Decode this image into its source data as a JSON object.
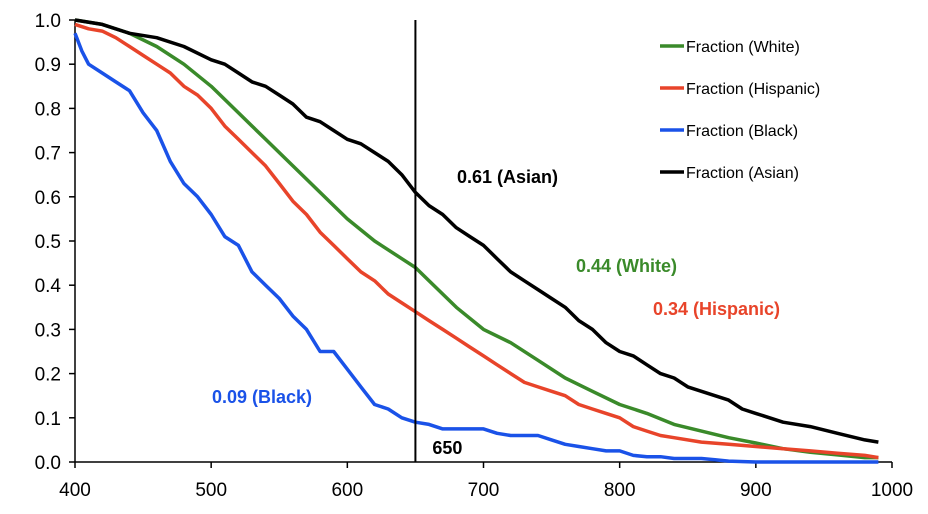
{
  "chart_data": {
    "type": "line",
    "xlim": [
      400,
      1000
    ],
    "ylim": [
      0,
      1
    ],
    "x_ticks": [
      "400",
      "500",
      "600",
      "700",
      "800",
      "900",
      "1000"
    ],
    "y_ticks": [
      "0.0",
      "0.1",
      "0.2",
      "0.3",
      "0.4",
      "0.5",
      "0.6",
      "0.7",
      "0.8",
      "0.9",
      "1.0"
    ],
    "grid": false,
    "legend_position": "top-right",
    "vertical_line": {
      "x": 650,
      "label": "650"
    },
    "series": [
      {
        "name": "Fraction (White)",
        "color": "#3a8a2a",
        "x": [
          400,
          420,
          440,
          460,
          480,
          500,
          520,
          540,
          560,
          580,
          600,
          620,
          640,
          650,
          660,
          680,
          700,
          720,
          740,
          760,
          780,
          800,
          820,
          840,
          860,
          880,
          900,
          920,
          940,
          960,
          980,
          990
        ],
        "y": [
          1.0,
          0.99,
          0.97,
          0.94,
          0.9,
          0.85,
          0.79,
          0.73,
          0.67,
          0.61,
          0.55,
          0.5,
          0.46,
          0.44,
          0.41,
          0.35,
          0.3,
          0.27,
          0.23,
          0.19,
          0.16,
          0.13,
          0.11,
          0.085,
          0.07,
          0.055,
          0.043,
          0.03,
          0.022,
          0.016,
          0.01,
          0.01
        ]
      },
      {
        "name": "Fraction (Hispanic)",
        "color": "#e8442a",
        "x": [
          400,
          410,
          420,
          430,
          440,
          450,
          460,
          470,
          480,
          490,
          500,
          510,
          520,
          530,
          540,
          550,
          560,
          570,
          580,
          590,
          600,
          610,
          620,
          630,
          640,
          650,
          660,
          670,
          680,
          690,
          700,
          710,
          720,
          730,
          740,
          750,
          760,
          770,
          780,
          790,
          800,
          810,
          820,
          830,
          840,
          860,
          880,
          900,
          920,
          940,
          960,
          980,
          990
        ],
        "y": [
          0.99,
          0.98,
          0.975,
          0.96,
          0.94,
          0.92,
          0.9,
          0.88,
          0.85,
          0.83,
          0.8,
          0.76,
          0.73,
          0.7,
          0.67,
          0.63,
          0.59,
          0.56,
          0.52,
          0.49,
          0.46,
          0.43,
          0.41,
          0.38,
          0.36,
          0.34,
          0.32,
          0.3,
          0.28,
          0.26,
          0.24,
          0.22,
          0.2,
          0.18,
          0.17,
          0.16,
          0.15,
          0.13,
          0.12,
          0.11,
          0.1,
          0.08,
          0.07,
          0.06,
          0.055,
          0.045,
          0.04,
          0.035,
          0.03,
          0.025,
          0.02,
          0.015,
          0.01
        ]
      },
      {
        "name": "Fraction (Black)",
        "color": "#1a52e8",
        "x": [
          400,
          405,
          410,
          420,
          430,
          440,
          450,
          460,
          470,
          480,
          490,
          500,
          510,
          520,
          530,
          540,
          550,
          560,
          570,
          580,
          590,
          600,
          610,
          620,
          630,
          640,
          650,
          660,
          670,
          680,
          690,
          700,
          710,
          720,
          740,
          750,
          760,
          770,
          780,
          790,
          800,
          810,
          820,
          830,
          840,
          860,
          870,
          880,
          900,
          950,
          990
        ],
        "y": [
          0.97,
          0.93,
          0.9,
          0.88,
          0.86,
          0.84,
          0.79,
          0.75,
          0.68,
          0.63,
          0.6,
          0.56,
          0.51,
          0.49,
          0.43,
          0.4,
          0.37,
          0.33,
          0.3,
          0.25,
          0.25,
          0.21,
          0.17,
          0.13,
          0.12,
          0.1,
          0.09,
          0.085,
          0.075,
          0.075,
          0.075,
          0.075,
          0.065,
          0.06,
          0.06,
          0.05,
          0.04,
          0.035,
          0.03,
          0.025,
          0.025,
          0.015,
          0.012,
          0.012,
          0.008,
          0.008,
          0.005,
          0.002,
          0.0,
          0.0,
          0.0
        ]
      },
      {
        "name": "Fraction (Asian)",
        "color": "#000000",
        "x": [
          400,
          420,
          440,
          460,
          480,
          500,
          510,
          520,
          530,
          540,
          550,
          560,
          570,
          580,
          590,
          600,
          610,
          620,
          630,
          640,
          650,
          660,
          670,
          680,
          690,
          700,
          710,
          720,
          730,
          740,
          750,
          760,
          770,
          780,
          790,
          800,
          810,
          820,
          830,
          840,
          850,
          860,
          870,
          880,
          890,
          900,
          920,
          940,
          960,
          980,
          990
        ],
        "y": [
          1.0,
          0.99,
          0.97,
          0.96,
          0.94,
          0.91,
          0.9,
          0.88,
          0.86,
          0.85,
          0.83,
          0.81,
          0.78,
          0.77,
          0.75,
          0.73,
          0.72,
          0.7,
          0.68,
          0.65,
          0.61,
          0.58,
          0.56,
          0.53,
          0.51,
          0.49,
          0.46,
          0.43,
          0.41,
          0.39,
          0.37,
          0.35,
          0.32,
          0.3,
          0.27,
          0.25,
          0.24,
          0.22,
          0.2,
          0.19,
          0.17,
          0.16,
          0.15,
          0.14,
          0.12,
          0.11,
          0.09,
          0.08,
          0.065,
          0.05,
          0.045
        ]
      }
    ],
    "annotations": [
      {
        "text": "0.61 (Asian)",
        "x": 650,
        "y": 0.61,
        "color": "#000000"
      },
      {
        "text": "0.44 (White)",
        "x": 650,
        "y": 0.44,
        "color": "#3a8a2a"
      },
      {
        "text": "0.34 (Hispanic)",
        "x": 650,
        "y": 0.34,
        "color": "#e8442a"
      },
      {
        "text": "0.09 (Black)",
        "x": 650,
        "y": 0.09,
        "color": "#1a52e8"
      }
    ]
  }
}
